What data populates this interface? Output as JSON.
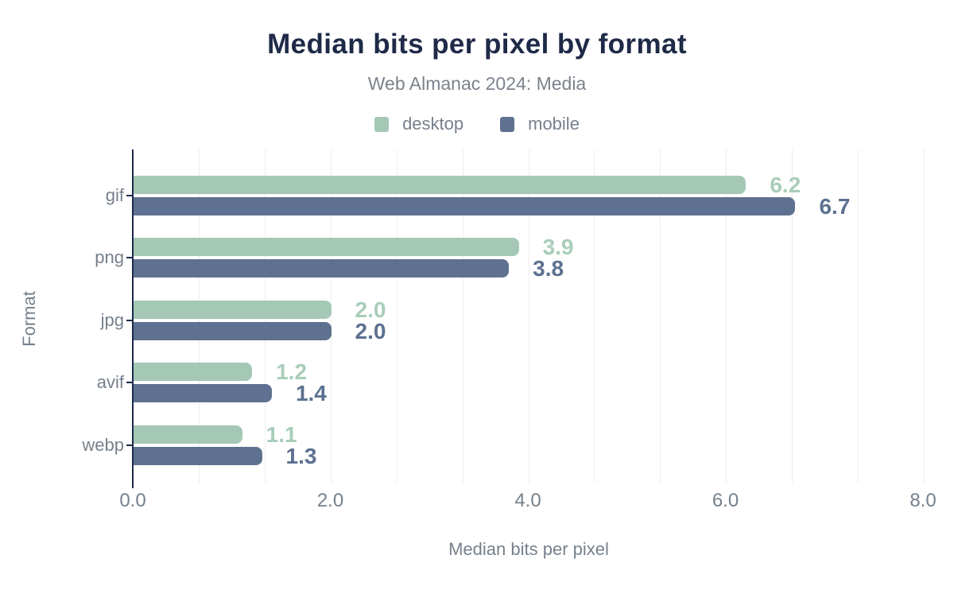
{
  "title": "Median bits per pixel by format",
  "subtitle": "Web Almanac 2024: Media",
  "chart_data": {
    "type": "bar",
    "orientation": "horizontal",
    "title": "Median bits per pixel by format",
    "subtitle": "Web Almanac 2024: Media",
    "categories": [
      "gif",
      "png",
      "jpg",
      "avif",
      "webp"
    ],
    "series": [
      {
        "name": "desktop",
        "color": "#a4c8b5",
        "label_color": "#a9cdb9",
        "values": [
          6.2,
          3.9,
          2.0,
          1.2,
          1.1
        ],
        "labels": [
          "6.2",
          "3.9",
          "2.0",
          "1.2",
          "1.1"
        ]
      },
      {
        "name": "mobile",
        "color": "#5f7190",
        "label_color": "#5c7190",
        "values": [
          6.7,
          3.8,
          2.0,
          1.4,
          1.3
        ],
        "labels": [
          "6.7",
          "3.8",
          "2.0",
          "1.4",
          "1.3"
        ]
      }
    ],
    "xlabel": "Median bits per pixel",
    "ylabel": "Format",
    "xlim": [
      0,
      8
    ],
    "x_ticks": [
      {
        "value": 0,
        "label": "0.0"
      },
      {
        "value": 2,
        "label": "2.0"
      },
      {
        "value": 4,
        "label": "4.0"
      },
      {
        "value": 6,
        "label": "6.0"
      },
      {
        "value": 8,
        "label": "8.0"
      }
    ],
    "gridlines_per_major_interval": 3,
    "grid": true,
    "legend_position": "top"
  },
  "colors": {
    "background": "#ffffff",
    "title": "#1e2a47",
    "subtitle": "#7b838d",
    "axis_text": "#76808c",
    "axis_line": "#1b2a4a",
    "gridline": "#ededed",
    "desktop": "#a4c8b5",
    "mobile": "#5f7190"
  }
}
